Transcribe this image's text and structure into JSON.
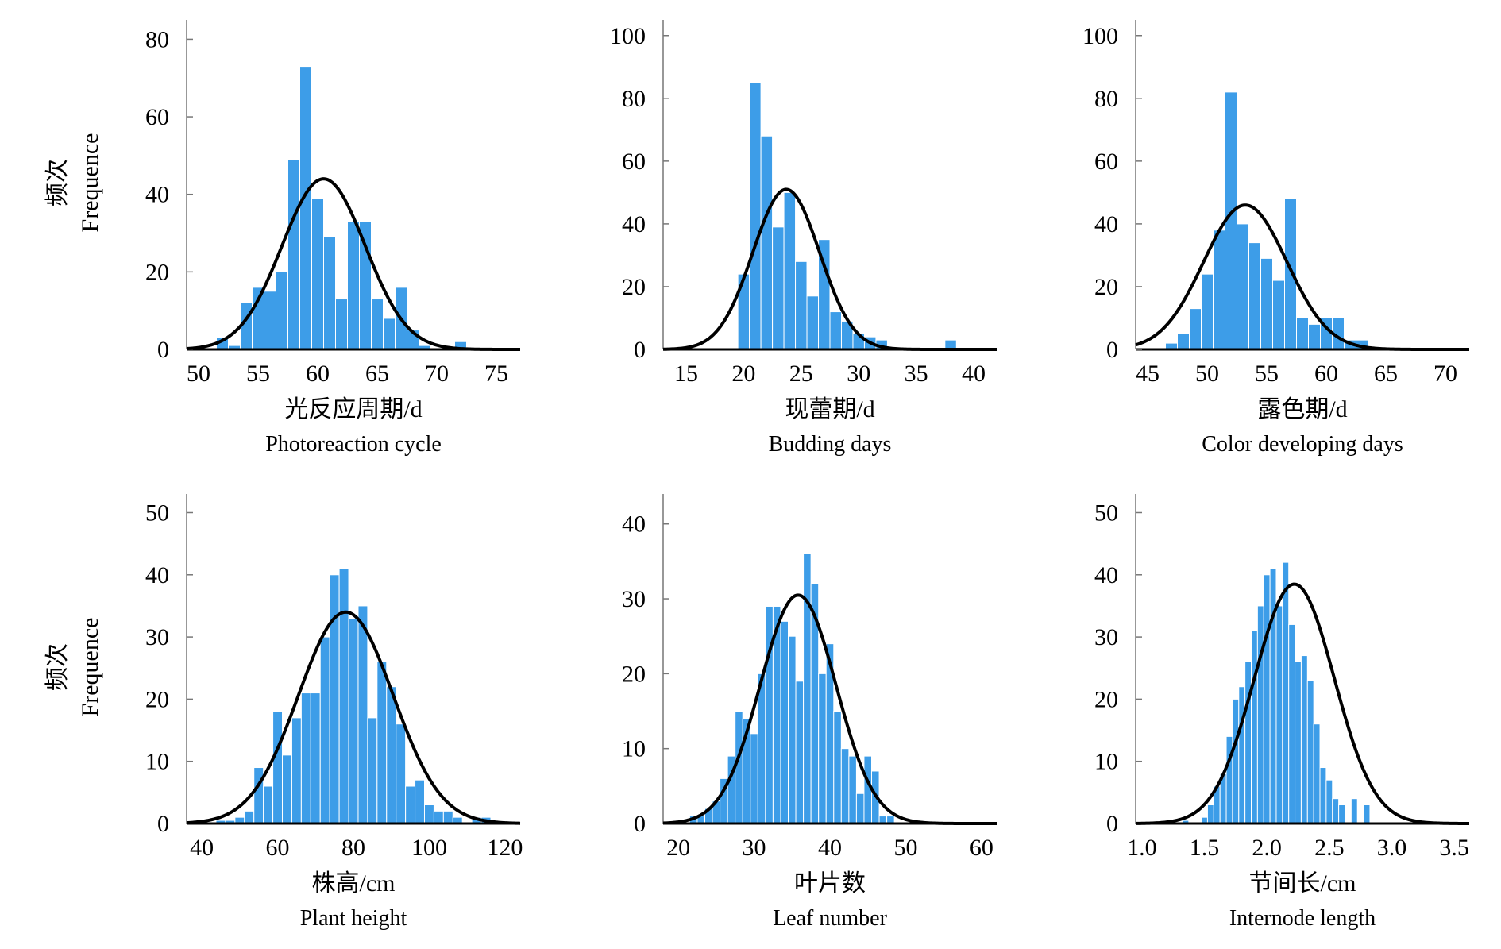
{
  "y_axis_label": {
    "cn": "频次",
    "en": "Frequence"
  },
  "chart_data": [
    {
      "type": "bar",
      "title": "",
      "xlabel_cn": "光反应周期/d",
      "xlabel_en": "Photoreaction cycle",
      "ylabel_cn": "频次",
      "ylabel_en": "Frequence",
      "xlim": [
        49,
        77
      ],
      "ylim": [
        0,
        85
      ],
      "xticks": [
        50,
        55,
        60,
        65,
        70,
        75
      ],
      "yticks": [
        0,
        20,
        40,
        60,
        80
      ],
      "bin_width": 1,
      "bins": [
        {
          "x": 52,
          "y": 3
        },
        {
          "x": 53,
          "y": 1
        },
        {
          "x": 54,
          "y": 12
        },
        {
          "x": 55,
          "y": 16
        },
        {
          "x": 56,
          "y": 15
        },
        {
          "x": 57,
          "y": 20
        },
        {
          "x": 58,
          "y": 49
        },
        {
          "x": 59,
          "y": 73
        },
        {
          "x": 60,
          "y": 39
        },
        {
          "x": 61,
          "y": 29
        },
        {
          "x": 62,
          "y": 13
        },
        {
          "x": 63,
          "y": 33
        },
        {
          "x": 64,
          "y": 33
        },
        {
          "x": 65,
          "y": 13
        },
        {
          "x": 66,
          "y": 8
        },
        {
          "x": 67,
          "y": 16
        },
        {
          "x": 68,
          "y": 5
        },
        {
          "x": 69,
          "y": 1
        },
        {
          "x": 72,
          "y": 2
        }
      ],
      "normal_curve": {
        "mean": 60.5,
        "sd": 3.5,
        "peak": 44
      }
    },
    {
      "type": "bar",
      "title": "",
      "xlabel_cn": "现蕾期/d",
      "xlabel_en": "Budding days",
      "ylabel_cn": "",
      "ylabel_en": "",
      "xlim": [
        13,
        42
      ],
      "ylim": [
        0,
        105
      ],
      "xticks": [
        15,
        20,
        25,
        30,
        35,
        40
      ],
      "yticks": [
        0,
        20,
        40,
        60,
        80,
        100
      ],
      "bin_width": 1,
      "bins": [
        {
          "x": 20,
          "y": 24
        },
        {
          "x": 21,
          "y": 85
        },
        {
          "x": 22,
          "y": 68
        },
        {
          "x": 23,
          "y": 39
        },
        {
          "x": 24,
          "y": 50
        },
        {
          "x": 25,
          "y": 28
        },
        {
          "x": 26,
          "y": 17
        },
        {
          "x": 27,
          "y": 35
        },
        {
          "x": 28,
          "y": 12
        },
        {
          "x": 29,
          "y": 9
        },
        {
          "x": 30,
          "y": 5
        },
        {
          "x": 31,
          "y": 4
        },
        {
          "x": 32,
          "y": 3
        },
        {
          "x": 38,
          "y": 3
        }
      ],
      "normal_curve": {
        "mean": 23.7,
        "sd": 2.9,
        "peak": 51
      }
    },
    {
      "type": "bar",
      "title": "",
      "xlabel_cn": "露色期/d",
      "xlabel_en": "Color developing days",
      "ylabel_cn": "",
      "ylabel_en": "",
      "xlim": [
        44,
        72
      ],
      "ylim": [
        0,
        105
      ],
      "xticks": [
        45,
        50,
        55,
        60,
        65,
        70
      ],
      "yticks": [
        0,
        20,
        40,
        60,
        80,
        100
      ],
      "bin_width": 1,
      "bins": [
        {
          "x": 47,
          "y": 2
        },
        {
          "x": 48,
          "y": 5
        },
        {
          "x": 49,
          "y": 13
        },
        {
          "x": 50,
          "y": 24
        },
        {
          "x": 51,
          "y": 38
        },
        {
          "x": 52,
          "y": 82
        },
        {
          "x": 53,
          "y": 40
        },
        {
          "x": 54,
          "y": 34
        },
        {
          "x": 55,
          "y": 29
        },
        {
          "x": 56,
          "y": 22
        },
        {
          "x": 57,
          "y": 48
        },
        {
          "x": 58,
          "y": 10
        },
        {
          "x": 59,
          "y": 8
        },
        {
          "x": 60,
          "y": 10
        },
        {
          "x": 61,
          "y": 10
        },
        {
          "x": 62,
          "y": 3
        },
        {
          "x": 63,
          "y": 3
        }
      ],
      "normal_curve": {
        "mean": 53.2,
        "sd": 3.5,
        "peak": 46
      }
    },
    {
      "type": "bar",
      "title": "",
      "xlabel_cn": "株高/cm",
      "xlabel_en": "Plant height",
      "ylabel_cn": "频次",
      "ylabel_en": "Frequence",
      "xlim": [
        36,
        124
      ],
      "ylim": [
        0,
        53
      ],
      "xticks": [
        40,
        60,
        80,
        100,
        120
      ],
      "yticks": [
        0,
        10,
        20,
        30,
        40,
        50
      ],
      "bin_width": 2.5,
      "bins": [
        {
          "x": 45,
          "y": 0.5
        },
        {
          "x": 47.5,
          "y": 0.5
        },
        {
          "x": 50,
          "y": 1
        },
        {
          "x": 52.5,
          "y": 2
        },
        {
          "x": 55,
          "y": 9
        },
        {
          "x": 57.5,
          "y": 6
        },
        {
          "x": 60,
          "y": 18
        },
        {
          "x": 62.5,
          "y": 11
        },
        {
          "x": 65,
          "y": 17
        },
        {
          "x": 67.5,
          "y": 21
        },
        {
          "x": 70,
          "y": 21
        },
        {
          "x": 72.5,
          "y": 30
        },
        {
          "x": 75,
          "y": 40
        },
        {
          "x": 77.5,
          "y": 41
        },
        {
          "x": 80,
          "y": 33
        },
        {
          "x": 82.5,
          "y": 35
        },
        {
          "x": 85,
          "y": 17
        },
        {
          "x": 87.5,
          "y": 26
        },
        {
          "x": 90,
          "y": 22
        },
        {
          "x": 92.5,
          "y": 16
        },
        {
          "x": 95,
          "y": 6
        },
        {
          "x": 97.5,
          "y": 7
        },
        {
          "x": 100,
          "y": 3
        },
        {
          "x": 102.5,
          "y": 2
        },
        {
          "x": 105,
          "y": 2
        },
        {
          "x": 107.5,
          "y": 1
        },
        {
          "x": 112.5,
          "y": 1
        },
        {
          "x": 115,
          "y": 1
        }
      ],
      "normal_curve": {
        "mean": 78,
        "sd": 12.5,
        "peak": 34
      }
    },
    {
      "type": "bar",
      "title": "",
      "xlabel_cn": "叶片数",
      "xlabel_en": "Leaf number",
      "ylabel_cn": "",
      "ylabel_en": "",
      "xlim": [
        18,
        62
      ],
      "ylim": [
        0,
        44
      ],
      "xticks": [
        20,
        30,
        40,
        50,
        60
      ],
      "yticks": [
        0,
        10,
        20,
        30,
        40
      ],
      "bin_width": 1,
      "bins": [
        {
          "x": 22,
          "y": 1
        },
        {
          "x": 23,
          "y": 1
        },
        {
          "x": 24,
          "y": 2
        },
        {
          "x": 25,
          "y": 3
        },
        {
          "x": 26,
          "y": 6
        },
        {
          "x": 27,
          "y": 9
        },
        {
          "x": 28,
          "y": 15
        },
        {
          "x": 29,
          "y": 14
        },
        {
          "x": 30,
          "y": 12
        },
        {
          "x": 31,
          "y": 20
        },
        {
          "x": 32,
          "y": 29
        },
        {
          "x": 33,
          "y": 29
        },
        {
          "x": 34,
          "y": 27
        },
        {
          "x": 35,
          "y": 25
        },
        {
          "x": 36,
          "y": 19
        },
        {
          "x": 37,
          "y": 36
        },
        {
          "x": 38,
          "y": 32
        },
        {
          "x": 39,
          "y": 20
        },
        {
          "x": 40,
          "y": 24
        },
        {
          "x": 41,
          "y": 15
        },
        {
          "x": 42,
          "y": 10
        },
        {
          "x": 43,
          "y": 9
        },
        {
          "x": 44,
          "y": 4
        },
        {
          "x": 45,
          "y": 9
        },
        {
          "x": 46,
          "y": 7
        },
        {
          "x": 47,
          "y": 1
        },
        {
          "x": 48,
          "y": 1
        }
      ],
      "normal_curve": {
        "mean": 35.8,
        "sd": 5,
        "peak": 30.5
      }
    },
    {
      "type": "bar",
      "title": "",
      "xlabel_cn": "节间长/cm",
      "xlabel_en": "Internode length",
      "ylabel_cn": "",
      "ylabel_en": "",
      "xlim": [
        0.95,
        3.62
      ],
      "ylim": [
        0,
        53
      ],
      "xticks": [
        "1.0",
        "1.5",
        "2.0",
        "2.5",
        "3.0",
        "3.5"
      ],
      "yticks": [
        0,
        10,
        20,
        30,
        40,
        50
      ],
      "bin_width": 0.05,
      "bins": [
        {
          "x": 1.35,
          "y": 0.5
        },
        {
          "x": 1.5,
          "y": 1
        },
        {
          "x": 1.55,
          "y": 3
        },
        {
          "x": 1.6,
          "y": 6
        },
        {
          "x": 1.65,
          "y": 8
        },
        {
          "x": 1.7,
          "y": 14
        },
        {
          "x": 1.75,
          "y": 20
        },
        {
          "x": 1.8,
          "y": 22
        },
        {
          "x": 1.85,
          "y": 26
        },
        {
          "x": 1.9,
          "y": 31
        },
        {
          "x": 1.95,
          "y": 35
        },
        {
          "x": 2.0,
          "y": 40
        },
        {
          "x": 2.05,
          "y": 41
        },
        {
          "x": 2.1,
          "y": 35
        },
        {
          "x": 2.15,
          "y": 42
        },
        {
          "x": 2.2,
          "y": 32
        },
        {
          "x": 2.25,
          "y": 26
        },
        {
          "x": 2.3,
          "y": 27
        },
        {
          "x": 2.35,
          "y": 23
        },
        {
          "x": 2.4,
          "y": 16
        },
        {
          "x": 2.45,
          "y": 9
        },
        {
          "x": 2.5,
          "y": 7
        },
        {
          "x": 2.55,
          "y": 4
        },
        {
          "x": 2.6,
          "y": 3
        },
        {
          "x": 2.7,
          "y": 4
        },
        {
          "x": 2.8,
          "y": 3
        }
      ],
      "normal_curve": {
        "mean": 2.22,
        "sd": 0.32,
        "peak": 38.5
      }
    }
  ]
}
